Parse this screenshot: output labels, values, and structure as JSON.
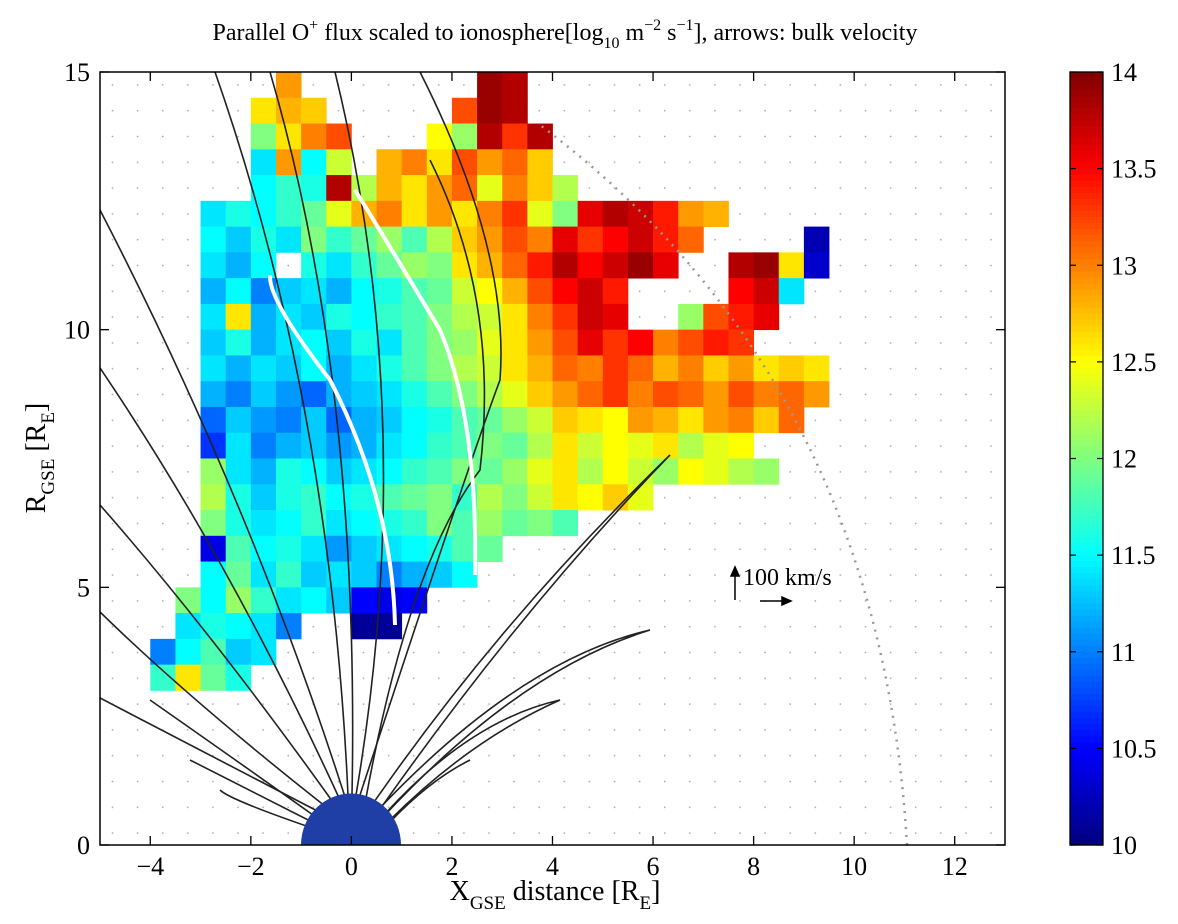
{
  "chart_data": {
    "type": "heatmap",
    "title": [
      "Parallel O",
      "+",
      " flux scaled to ionosphere[log",
      "10",
      " m",
      "−2",
      " s",
      "−1",
      "], arrows: bulk velocity"
    ],
    "xlabel": [
      "X",
      "GSE",
      " distance [R",
      "E",
      "]"
    ],
    "ylabel": [
      "R",
      "GSE",
      " [R",
      "E",
      "]"
    ],
    "annotation": "100 km/s",
    "colormap": "jet",
    "xlim": [
      -5,
      13
    ],
    "ylim": [
      0,
      15
    ],
    "xticks": [
      {
        "value": -4,
        "label": "−4"
      },
      {
        "value": -2,
        "label": "−2"
      },
      0,
      2,
      4,
      6,
      8,
      10,
      12
    ],
    "yticks": [
      0,
      5,
      10,
      15
    ],
    "clim": [
      10,
      14
    ],
    "cticks": [
      10,
      10.5,
      11,
      11.5,
      12,
      12.5,
      13,
      13.5,
      14
    ],
    "x": [
      -3.75,
      -3.25,
      -2.75,
      -2.25,
      -1.75,
      -1.25,
      -0.75,
      -0.25,
      0.25,
      0.75,
      1.25,
      1.75,
      2.25,
      2.75,
      3.25,
      3.75,
      4.25,
      4.75,
      5.25,
      5.75,
      6.25,
      6.75,
      7.25,
      7.75,
      8.25,
      8.75,
      9.25
    ],
    "y": [
      14.75,
      14.25,
      13.75,
      13.25,
      12.75,
      12.25,
      11.75,
      11.25,
      10.75,
      10.25,
      9.75,
      9.25,
      8.75,
      8.25,
      7.75,
      7.25,
      6.75,
      6.25,
      5.75,
      5.25,
      4.75,
      4.25,
      3.75,
      3.25
    ],
    "z": [
      [
        null,
        null,
        null,
        null,
        null,
        12.9,
        null,
        null,
        null,
        null,
        null,
        null,
        null,
        13.9,
        13.8,
        null,
        null,
        null,
        null,
        null,
        null,
        null,
        null,
        null,
        null,
        null,
        null
      ],
      [
        null,
        null,
        null,
        null,
        12.6,
        12.8,
        12.7,
        null,
        null,
        null,
        null,
        null,
        13.2,
        13.9,
        13.8,
        null,
        null,
        null,
        null,
        null,
        null,
        null,
        null,
        null,
        null,
        null,
        null
      ],
      [
        null,
        null,
        null,
        null,
        12.0,
        12.6,
        13.0,
        13.2,
        null,
        null,
        null,
        12.5,
        12.1,
        13.8,
        13.3,
        13.8,
        null,
        null,
        null,
        null,
        null,
        null,
        null,
        null,
        null,
        null,
        null
      ],
      [
        null,
        null,
        null,
        null,
        11.4,
        12.9,
        11.5,
        12.3,
        null,
        12.8,
        13.0,
        12.6,
        13.2,
        12.9,
        13.1,
        12.7,
        null,
        null,
        null,
        null,
        null,
        null,
        null,
        null,
        null,
        null,
        null
      ],
      [
        null,
        null,
        null,
        null,
        11.5,
        11.7,
        11.6,
        13.8,
        12.2,
        12.8,
        12.6,
        12.9,
        13.1,
        12.4,
        13.0,
        12.7,
        12.2,
        null,
        null,
        null,
        null,
        null,
        null,
        null,
        null,
        null,
        null
      ],
      [
        null,
        null,
        11.4,
        11.6,
        11.5,
        11.7,
        11.9,
        12.4,
        12.8,
        13.0,
        12.6,
        12.9,
        12.6,
        13.0,
        13.3,
        12.4,
        12.0,
        13.6,
        13.8,
        13.7,
        13.4,
        12.9,
        12.8,
        null,
        null,
        null,
        null
      ],
      [
        null,
        null,
        11.5,
        11.3,
        11.6,
        11.4,
        12.0,
        11.7,
        11.9,
        12.1,
        11.8,
        12.2,
        12.7,
        12.9,
        13.2,
        13.0,
        13.6,
        13.3,
        13.5,
        13.7,
        13.4,
        13.1,
        null,
        null,
        null,
        null,
        10.2
      ],
      [
        null,
        null,
        11.4,
        11.2,
        11.5,
        null,
        11.6,
        11.4,
        11.7,
        11.9,
        12.1,
        12.0,
        12.6,
        12.8,
        13.1,
        13.4,
        13.8,
        13.5,
        13.7,
        13.9,
        13.6,
        null,
        null,
        13.8,
        13.9,
        12.6,
        10.3
      ],
      [
        null,
        null,
        11.2,
        11.5,
        11.0,
        11.3,
        11.4,
        11.2,
        11.5,
        11.6,
        11.8,
        11.9,
        12.3,
        12.5,
        12.8,
        13.2,
        13.5,
        13.7,
        13.4,
        null,
        null,
        null,
        null,
        13.5,
        13.7,
        11.4,
        null
      ],
      [
        null,
        null,
        11.4,
        12.6,
        11.2,
        11.4,
        11.3,
        11.6,
        11.5,
        11.7,
        11.8,
        12.0,
        12.2,
        12.3,
        12.6,
        13.0,
        13.3,
        13.7,
        13.6,
        null,
        null,
        12.1,
        13.2,
        13.4,
        13.6,
        null,
        null
      ],
      [
        null,
        null,
        11.3,
        11.6,
        11.2,
        11.4,
        11.5,
        11.3,
        11.6,
        11.4,
        11.8,
        12.0,
        12.1,
        12.4,
        12.6,
        12.9,
        13.2,
        13.6,
        13.3,
        13.5,
        13.0,
        13.2,
        13.4,
        13.3,
        null,
        null,
        null
      ],
      [
        null,
        null,
        11.4,
        11.2,
        11.4,
        11.3,
        11.5,
        11.2,
        11.4,
        11.6,
        11.8,
        12.0,
        12.2,
        12.3,
        12.6,
        12.8,
        13.1,
        13.0,
        13.3,
        13.1,
        12.8,
        13.0,
        12.7,
        12.9,
        12.6,
        12.7,
        12.6
      ],
      [
        null,
        null,
        11.2,
        11.0,
        11.3,
        11.1,
        10.9,
        11.2,
        11.3,
        11.4,
        11.6,
        11.8,
        12.0,
        12.2,
        12.4,
        12.7,
        12.9,
        13.1,
        13.3,
        13.0,
        13.2,
        13.1,
        12.9,
        13.2,
        13.0,
        13.1,
        12.9
      ],
      [
        null,
        null,
        10.9,
        11.3,
        11.1,
        11.0,
        11.3,
        10.9,
        11.2,
        11.3,
        11.5,
        11.6,
        11.8,
        11.9,
        12.1,
        12.3,
        12.7,
        12.6,
        12.5,
        12.9,
        12.8,
        12.6,
        12.9,
        13.0,
        12.7,
        13.1,
        null
      ],
      [
        null,
        null,
        10.7,
        11.4,
        11.0,
        11.2,
        11.3,
        11.1,
        11.2,
        11.4,
        11.5,
        11.7,
        11.8,
        12.0,
        11.9,
        12.2,
        12.6,
        12.3,
        12.5,
        12.4,
        12.6,
        12.2,
        12.4,
        12.5,
        null,
        null,
        null
      ],
      [
        null,
        null,
        12.1,
        11.4,
        11.2,
        11.6,
        11.5,
        11.3,
        11.4,
        11.5,
        11.7,
        11.8,
        12.0,
        11.9,
        12.1,
        12.4,
        12.6,
        12.2,
        12.5,
        12.3,
        12.1,
        12.5,
        12.4,
        12.2,
        12.1,
        null,
        null
      ],
      [
        null,
        null,
        12.2,
        11.6,
        11.3,
        11.6,
        11.7,
        11.5,
        11.6,
        11.8,
        11.9,
        12.0,
        11.7,
        12.2,
        12.0,
        12.3,
        12.6,
        12.5,
        12.7,
        12.4,
        null,
        null,
        null,
        null,
        null,
        null,
        null
      ],
      [
        null,
        null,
        12.0,
        11.6,
        11.4,
        11.5,
        11.7,
        11.4,
        11.5,
        11.6,
        11.7,
        12.0,
        11.8,
        12.1,
        11.9,
        12.0,
        11.8,
        null,
        null,
        null,
        null,
        null,
        null,
        null,
        null,
        null,
        null
      ],
      [
        null,
        null,
        10.4,
        11.8,
        11.5,
        11.6,
        11.4,
        11.1,
        11.3,
        11.4,
        11.5,
        11.6,
        11.8,
        11.9,
        null,
        null,
        null,
        null,
        null,
        null,
        null,
        null,
        null,
        null,
        null,
        null,
        null
      ],
      [
        null,
        null,
        11.5,
        11.9,
        11.4,
        11.7,
        11.3,
        11.4,
        11.3,
        11.0,
        11.2,
        11.3,
        11.5,
        null,
        null,
        null,
        null,
        null,
        null,
        null,
        null,
        null,
        null,
        null,
        null,
        null,
        null
      ],
      [
        null,
        12.0,
        11.5,
        12.1,
        11.7,
        11.4,
        11.5,
        11.3,
        10.5,
        10.4,
        10.5,
        null,
        null,
        null,
        null,
        null,
        null,
        null,
        null,
        null,
        null,
        null,
        null,
        null,
        null,
        null,
        null
      ],
      [
        null,
        11.4,
        11.6,
        11.5,
        11.4,
        11.0,
        null,
        null,
        10.1,
        10.1,
        null,
        null,
        null,
        null,
        null,
        null,
        null,
        null,
        null,
        null,
        null,
        null,
        null,
        null,
        null,
        null,
        null
      ],
      [
        11.0,
        11.5,
        11.8,
        11.3,
        11.4,
        null,
        null,
        null,
        null,
        null,
        null,
        null,
        null,
        null,
        null,
        null,
        null,
        null,
        null,
        null,
        null,
        null,
        null,
        null,
        null,
        null,
        null
      ],
      [
        11.7,
        12.6,
        11.9,
        11.6,
        null,
        null,
        null,
        null,
        null,
        null,
        null,
        null,
        null,
        null,
        null,
        null,
        null,
        null,
        null,
        null,
        null,
        null,
        null,
        null,
        null,
        null,
        null
      ]
    ]
  }
}
